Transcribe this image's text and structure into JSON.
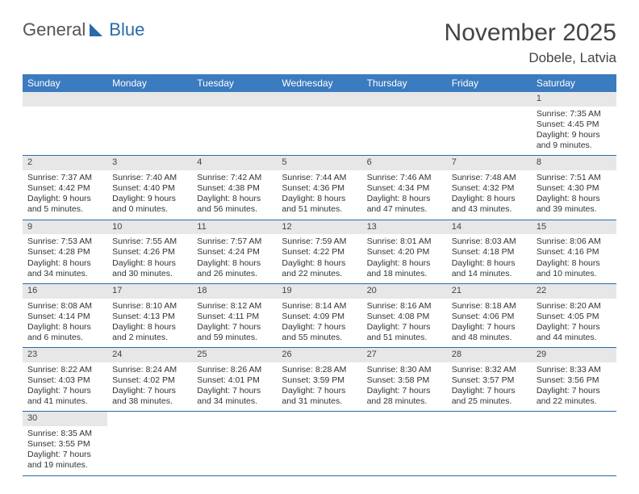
{
  "logo": {
    "text1": "General",
    "text2": "Blue"
  },
  "title": "November 2025",
  "location": "Dobele, Latvia",
  "daysOfWeek": [
    "Sunday",
    "Monday",
    "Tuesday",
    "Wednesday",
    "Thursday",
    "Friday",
    "Saturday"
  ],
  "colors": {
    "header_bg": "#3b7bbf",
    "row_divider": "#2a6aa8",
    "daynum_bg": "#e7e7e7",
    "logo_blue": "#2a6aa8",
    "text": "#333333"
  },
  "typography": {
    "title_fontsize": 30,
    "location_fontsize": 17,
    "header_fontsize": 12,
    "cell_fontsize": 10.5
  },
  "weeks": [
    [
      null,
      null,
      null,
      null,
      null,
      null,
      {
        "n": "1",
        "sunrise": "7:35 AM",
        "sunset": "4:45 PM",
        "dl": "9 hours and 9 minutes."
      }
    ],
    [
      {
        "n": "2",
        "sunrise": "7:37 AM",
        "sunset": "4:42 PM",
        "dl": "9 hours and 5 minutes."
      },
      {
        "n": "3",
        "sunrise": "7:40 AM",
        "sunset": "4:40 PM",
        "dl": "9 hours and 0 minutes."
      },
      {
        "n": "4",
        "sunrise": "7:42 AM",
        "sunset": "4:38 PM",
        "dl": "8 hours and 56 minutes."
      },
      {
        "n": "5",
        "sunrise": "7:44 AM",
        "sunset": "4:36 PM",
        "dl": "8 hours and 51 minutes."
      },
      {
        "n": "6",
        "sunrise": "7:46 AM",
        "sunset": "4:34 PM",
        "dl": "8 hours and 47 minutes."
      },
      {
        "n": "7",
        "sunrise": "7:48 AM",
        "sunset": "4:32 PM",
        "dl": "8 hours and 43 minutes."
      },
      {
        "n": "8",
        "sunrise": "7:51 AM",
        "sunset": "4:30 PM",
        "dl": "8 hours and 39 minutes."
      }
    ],
    [
      {
        "n": "9",
        "sunrise": "7:53 AM",
        "sunset": "4:28 PM",
        "dl": "8 hours and 34 minutes."
      },
      {
        "n": "10",
        "sunrise": "7:55 AM",
        "sunset": "4:26 PM",
        "dl": "8 hours and 30 minutes."
      },
      {
        "n": "11",
        "sunrise": "7:57 AM",
        "sunset": "4:24 PM",
        "dl": "8 hours and 26 minutes."
      },
      {
        "n": "12",
        "sunrise": "7:59 AM",
        "sunset": "4:22 PM",
        "dl": "8 hours and 22 minutes."
      },
      {
        "n": "13",
        "sunrise": "8:01 AM",
        "sunset": "4:20 PM",
        "dl": "8 hours and 18 minutes."
      },
      {
        "n": "14",
        "sunrise": "8:03 AM",
        "sunset": "4:18 PM",
        "dl": "8 hours and 14 minutes."
      },
      {
        "n": "15",
        "sunrise": "8:06 AM",
        "sunset": "4:16 PM",
        "dl": "8 hours and 10 minutes."
      }
    ],
    [
      {
        "n": "16",
        "sunrise": "8:08 AM",
        "sunset": "4:14 PM",
        "dl": "8 hours and 6 minutes."
      },
      {
        "n": "17",
        "sunrise": "8:10 AM",
        "sunset": "4:13 PM",
        "dl": "8 hours and 2 minutes."
      },
      {
        "n": "18",
        "sunrise": "8:12 AM",
        "sunset": "4:11 PM",
        "dl": "7 hours and 59 minutes."
      },
      {
        "n": "19",
        "sunrise": "8:14 AM",
        "sunset": "4:09 PM",
        "dl": "7 hours and 55 minutes."
      },
      {
        "n": "20",
        "sunrise": "8:16 AM",
        "sunset": "4:08 PM",
        "dl": "7 hours and 51 minutes."
      },
      {
        "n": "21",
        "sunrise": "8:18 AM",
        "sunset": "4:06 PM",
        "dl": "7 hours and 48 minutes."
      },
      {
        "n": "22",
        "sunrise": "8:20 AM",
        "sunset": "4:05 PM",
        "dl": "7 hours and 44 minutes."
      }
    ],
    [
      {
        "n": "23",
        "sunrise": "8:22 AM",
        "sunset": "4:03 PM",
        "dl": "7 hours and 41 minutes."
      },
      {
        "n": "24",
        "sunrise": "8:24 AM",
        "sunset": "4:02 PM",
        "dl": "7 hours and 38 minutes."
      },
      {
        "n": "25",
        "sunrise": "8:26 AM",
        "sunset": "4:01 PM",
        "dl": "7 hours and 34 minutes."
      },
      {
        "n": "26",
        "sunrise": "8:28 AM",
        "sunset": "3:59 PM",
        "dl": "7 hours and 31 minutes."
      },
      {
        "n": "27",
        "sunrise": "8:30 AM",
        "sunset": "3:58 PM",
        "dl": "7 hours and 28 minutes."
      },
      {
        "n": "28",
        "sunrise": "8:32 AM",
        "sunset": "3:57 PM",
        "dl": "7 hours and 25 minutes."
      },
      {
        "n": "29",
        "sunrise": "8:33 AM",
        "sunset": "3:56 PM",
        "dl": "7 hours and 22 minutes."
      }
    ],
    [
      {
        "n": "30",
        "sunrise": "8:35 AM",
        "sunset": "3:55 PM",
        "dl": "7 hours and 19 minutes."
      },
      null,
      null,
      null,
      null,
      null,
      null
    ]
  ],
  "labels": {
    "sunrise": "Sunrise: ",
    "sunset": "Sunset: ",
    "daylight": "Daylight: "
  }
}
